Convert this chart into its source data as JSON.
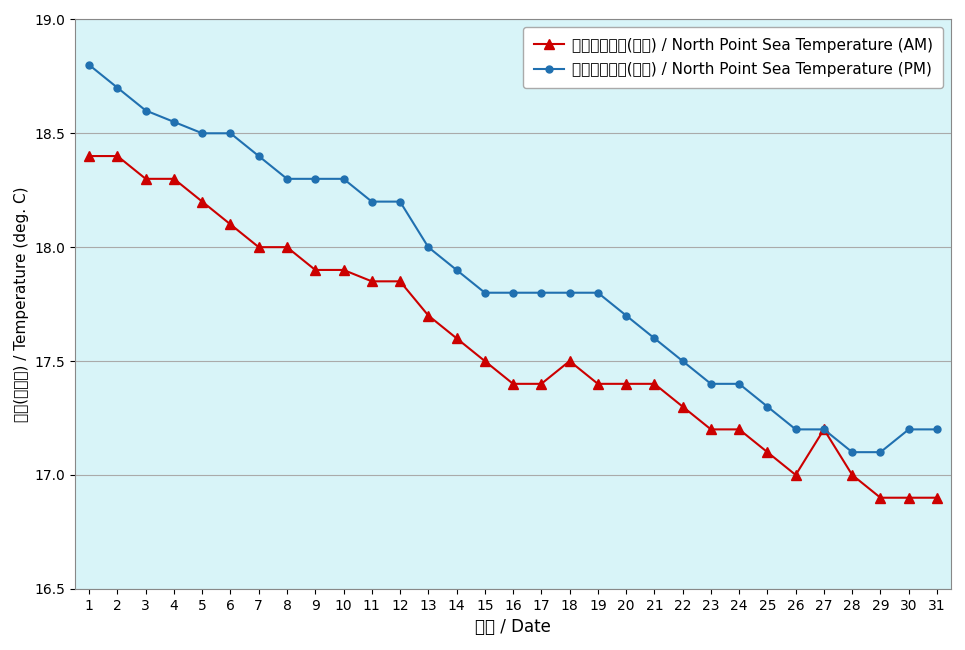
{
  "days": [
    1,
    2,
    3,
    4,
    5,
    6,
    7,
    8,
    9,
    10,
    11,
    12,
    13,
    14,
    15,
    16,
    17,
    18,
    19,
    20,
    21,
    22,
    23,
    24,
    25,
    26,
    27,
    28,
    29,
    30,
    31
  ],
  "am_temps": [
    18.4,
    18.4,
    18.3,
    18.3,
    18.2,
    18.1,
    18.0,
    18.0,
    17.9,
    17.9,
    17.85,
    17.85,
    17.7,
    17.6,
    17.5,
    17.4,
    17.4,
    17.5,
    17.4,
    17.4,
    17.4,
    17.3,
    17.2,
    17.2,
    17.1,
    17.0,
    17.2,
    17.0,
    16.9,
    16.9,
    16.9
  ],
  "pm_temps": [
    18.8,
    18.7,
    18.6,
    18.55,
    18.5,
    18.5,
    18.4,
    18.3,
    18.3,
    18.3,
    18.2,
    18.2,
    18.0,
    17.9,
    17.8,
    17.8,
    17.8,
    17.8,
    17.8,
    17.7,
    17.6,
    17.5,
    17.4,
    17.4,
    17.3,
    17.2,
    17.2,
    17.1,
    17.1,
    17.2,
    17.2
  ],
  "am_color": "#cc0000",
  "pm_color": "#2070b0",
  "bg_color": "#d8f4f8",
  "ylim": [
    16.5,
    19.0
  ],
  "yticks": [
    16.5,
    17.0,
    17.5,
    18.0,
    18.5,
    19.0
  ],
  "xlabel": "日期 / Date",
  "ylabel": "温度(攝氏度) / Temperature (deg. C)",
  "legend_am": "北角海水溫度(上午) / North Point Sea Temperature (AM)",
  "legend_pm": "北角海水溫度(下午) / North Point Sea Temperature (PM)",
  "grid_color": "#aaaaaa",
  "outer_bg": "#ffffff"
}
